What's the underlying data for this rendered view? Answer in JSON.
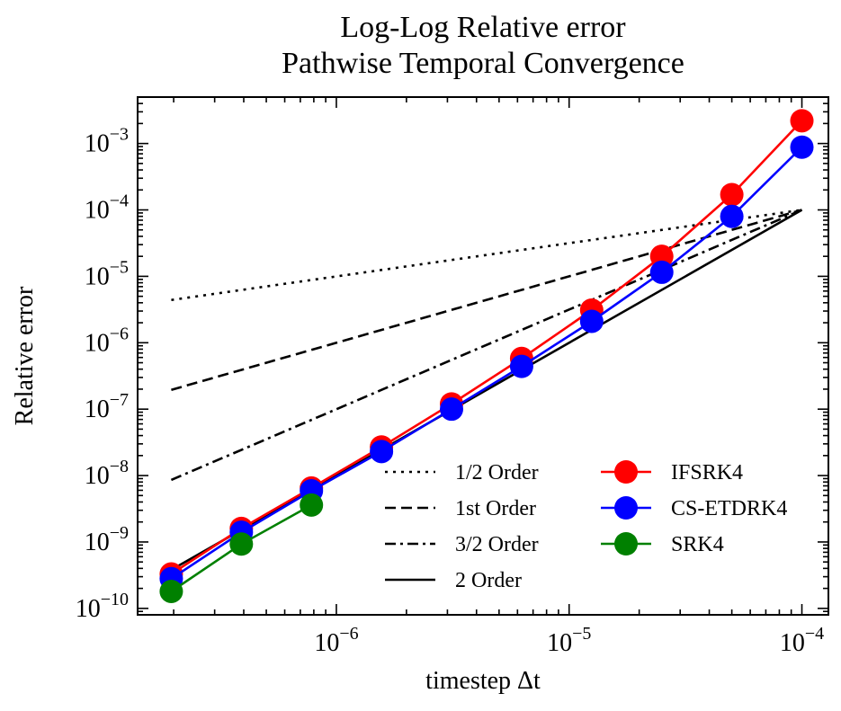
{
  "figure": {
    "title_line1": "Log-Log Relative error",
    "title_line2": "Pathwise Temporal Convergence"
  },
  "chart_data": {
    "type": "line",
    "scale": "log-log",
    "title": "Log-Log Relative error\nPathwise Temporal Convergence",
    "xlabel": "timestep Δt",
    "ylabel": "Relative error",
    "xlim": [
      1.4e-07,
      0.00013
    ],
    "ylim": [
      8e-11,
      0.005
    ],
    "x_ticks": [
      {
        "value": 1e-06,
        "base": "10",
        "exp": "−6"
      },
      {
        "value": 1e-05,
        "base": "10",
        "exp": "−5"
      },
      {
        "value": 0.0001,
        "base": "10",
        "exp": "−4"
      }
    ],
    "y_ticks": [
      {
        "value": 1e-10,
        "base": "10",
        "exp": "−10"
      },
      {
        "value": 1e-09,
        "base": "10",
        "exp": "−9"
      },
      {
        "value": 1e-08,
        "base": "10",
        "exp": "−8"
      },
      {
        "value": 1e-07,
        "base": "10",
        "exp": "−7"
      },
      {
        "value": 1e-06,
        "base": "10",
        "exp": "−6"
      },
      {
        "value": 1e-05,
        "base": "10",
        "exp": "−5"
      },
      {
        "value": 0.0001,
        "base": "10",
        "exp": "−4"
      },
      {
        "value": 0.001,
        "base": "10",
        "exp": "−3"
      }
    ],
    "x": [
      1.953125e-07,
      3.90625e-07,
      7.8125e-07,
      1.5625e-06,
      3.125e-06,
      6.25e-06,
      1.25e-05,
      2.5e-05,
      5e-05,
      0.0001
    ],
    "reference_lines": [
      {
        "name": "1/2 Order",
        "style": "dotted",
        "x": [
          1.953125e-07,
          0.0001
        ],
        "y": [
          4.4e-06,
          0.0001
        ]
      },
      {
        "name": "1st Order",
        "style": "dashed",
        "x": [
          1.953125e-07,
          0.0001
        ],
        "y": [
          1.95e-07,
          0.0001
        ]
      },
      {
        "name": "3/2 Order",
        "style": "dashdot",
        "x": [
          1.953125e-07,
          0.0001
        ],
        "y": [
          8.6e-09,
          0.0001
        ]
      },
      {
        "name": "2 Order",
        "style": "solid",
        "x": [
          1.953125e-07,
          0.0001
        ],
        "y": [
          3.8e-10,
          0.0001
        ]
      }
    ],
    "series": [
      {
        "name": "IFSRK4",
        "color": "#ff0000",
        "x": [
          1.953125e-07,
          3.90625e-07,
          7.8125e-07,
          1.5625e-06,
          3.125e-06,
          6.25e-06,
          1.25e-05,
          2.5e-05,
          5e-05,
          0.0001
        ],
        "values": [
          3.3e-10,
          1.6e-09,
          6.5e-09,
          2.7e-08,
          1.2e-07,
          5.8e-07,
          3.1e-06,
          2e-05,
          0.00017,
          0.0022
        ]
      },
      {
        "name": "CS-ETDRK4",
        "color": "#0000ff",
        "x": [
          1.953125e-07,
          3.90625e-07,
          7.8125e-07,
          1.5625e-06,
          3.125e-06,
          6.25e-06,
          1.25e-05,
          2.5e-05,
          5e-05,
          0.0001
        ],
        "values": [
          2.8e-10,
          1.4e-09,
          5.9e-09,
          2.3e-08,
          1e-07,
          4.4e-07,
          2.1e-06,
          1.15e-05,
          8e-05,
          0.00088
        ]
      },
      {
        "name": "SRK4",
        "color": "#008000",
        "x": [
          1.953125e-07,
          3.90625e-07,
          7.8125e-07
        ],
        "values": [
          1.8e-10,
          9.3e-10,
          3.6e-09
        ]
      }
    ],
    "legend": {
      "placement": "lower-right",
      "columns": 2
    }
  }
}
